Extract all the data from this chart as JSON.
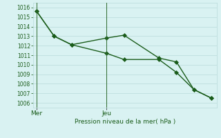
{
  "line1_x": [
    0,
    1,
    2,
    4,
    5,
    7,
    8,
    9,
    10
  ],
  "line1_y": [
    1015.6,
    1013.0,
    1012.1,
    1012.8,
    1013.1,
    1010.7,
    1010.3,
    1007.4,
    1006.5
  ],
  "line2_x": [
    0,
    1,
    2,
    4,
    5,
    7,
    8,
    9,
    10
  ],
  "line2_y": [
    1015.6,
    1013.0,
    1012.1,
    1011.2,
    1010.55,
    1010.55,
    1009.2,
    1007.4,
    1006.5
  ],
  "line_color": "#1a5c1a",
  "marker": "D",
  "marker_size": 3,
  "ylim": [
    1005.5,
    1016.5
  ],
  "yticks": [
    1006,
    1007,
    1008,
    1009,
    1010,
    1011,
    1012,
    1013,
    1014,
    1015,
    1016
  ],
  "mer_x": 0,
  "jeu_x": 4,
  "xlabel": "Pression niveau de la mer( hPa )",
  "bg_color": "#d9f2f2",
  "grid_color": "#b8dada",
  "text_color": "#1a5c1a",
  "vline_color": "#2e6b2e",
  "xlim": [
    -0.2,
    10.3
  ]
}
